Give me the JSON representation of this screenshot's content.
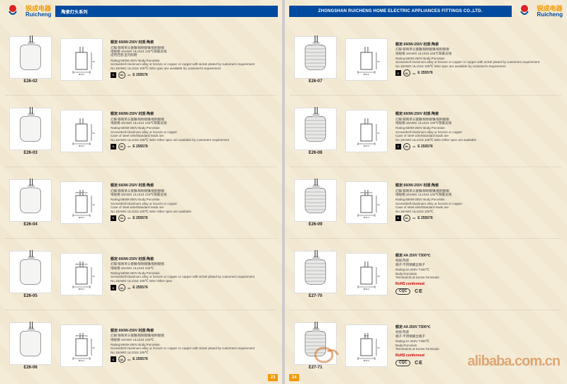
{
  "brand": {
    "cn": "锐成电器",
    "en": "Ruicheng"
  },
  "header_left": "陶瓷灯头系列",
  "header_right": "ZHONGSHAN RUICHENG HOME ELECTRIC APPLIANCES FITTINGS CO.,LTD.",
  "page_left_num": "23",
  "page_right_num": "24",
  "watermark": "alibaba.com.cn",
  "cert_code": "E 255576",
  "cert_letter": "C",
  "cert_ul": "UL",
  "cert_us": "us",
  "rohs_text": "RoHS conformed",
  "cqc_text": "CQC",
  "ce_text": "CE",
  "left_products": [
    {
      "model": "E26-02",
      "spec_cn": "额定:660W-250V  材质:陶瓷",
      "desc_cn": "灯脚:铁制单头镀镍/铜制镀镍/铜制镀锡\n线规格:18AWG UL1015 105℃铁氟龙线\n适用范围:室内照明",
      "desc_en": "Rating:660W-250V  Body:Porcelain\nScrewshell:Aluminum alloy or bronze or copper or copper with nickel plated by customers requirement\nNo.18AWG UL1015 105℃ Wire spec are available by customer's requirement"
    },
    {
      "model": "E26-03",
      "spec_cn": "额定:660W-250V  材质:陶瓷",
      "desc_cn": "灯脚:铁制单头镀镍/铜制镀镍/铜制镀锡\n线规格:18AWG UL1015 105℃铁氟龙线",
      "desc_en": "Rating:660W-250V  Body:Porcelain\nScrewshell:Aluminum alloy or bronze or copper\nCase of steel wire/Standard leads are\nNo.18AWG UL1015 105℃ Wire Other spec are available by customers requirement"
    },
    {
      "model": "E26-04",
      "spec_cn": "额定:660W-250V  材质:陶瓷",
      "desc_cn": "灯脚:铁制单头镀镍/铜制镀镍/铜制镀锡\n线规格:18AWG UL1015 105℃铁氟龙线",
      "desc_en": "Rating:660W-250V  Body:Porcelain\nScrewshell:Aluminum alloy or bronze or copper\nCase of steel wire/Standard leads are\nNo.18AWG UL1015 105℃ Wire Other spec are available",
      "np": "NPS1/8-27(F)"
    },
    {
      "model": "E26-05",
      "spec_cn": "额定:660W-250V  材质:陶瓷",
      "desc_cn": "灯脚:铁制单头镀镍/铜制镀镍/铜制镀锡\n线规格:18AWG UL1015 105℃",
      "desc_en": "Rating:660W-250V  Body:Porcelain\nScrewshell:Aluminum alloy or bronze or copper or copper with nickel plated by customers requirement\nNo.18AWG UL1015 105℃ Wire Other spec",
      "np": "NPS1/8-27(F)"
    },
    {
      "model": "E26-06",
      "spec_cn": "额定:660W-250V  材质:陶瓷",
      "desc_cn": "灯脚:铁制单头镀镍/铜制镀镍/铜制镀锡\n线规格:18AWG UL1015 105℃",
      "desc_en": "Rating:660W-250V  Body:Porcelain\nScrewshell:Aluminum alloy or bronze or copper or copper with nickel plated by customers requirement\nNo.18AWG UL1015 105℃",
      "np": "NPS1/8-27(F)"
    }
  ],
  "right_products": [
    {
      "model": "E26-07",
      "spec_cn": "额定:660W-250V  材质:陶瓷",
      "desc_cn": "灯脚:铁制单头镀镍/铜制镀镍/铜制镀锡\n线规格:18AWG UL1015 105℃铁氟龙线",
      "desc_en": "Rating:660W-250V  Body:Porcelain\nScrewshell:Aluminum alloy or bronze or copper or copper with nickel plated by customers requirement\nNo.18AWG UL1015 105℃ Wire spec are available by customer's requirement",
      "ridged": true
    },
    {
      "model": "E26-08",
      "spec_cn": "额定:660W-250V  材质:陶瓷",
      "desc_cn": "灯脚:铁制单头镀镍/铜制镀镍/铜制镀锡\n线规格:18AWG UL1015 105℃铁氟龙线",
      "desc_en": "Rating:660W-250V  Body:Porcelain\nScrewshell:Aluminum alloy or bronze or copper\nCase of steel wire/Standard leads are\nNo.18AWG UL1015 105℃ Wire Other spec are available",
      "ridged": true
    },
    {
      "model": "E26-09",
      "spec_cn": "额定:660W-250V  材质:陶瓷",
      "desc_cn": "灯脚:铁制单头镀镍/铜制镀镍/铜制镀锡\n线规格:18AWG UL1015 105℃铁氟龙线",
      "desc_en": "Rating:660W-250V  Body:Porcelain\nScrewshell:Aluminum alloy or bronze or copper\nCase of steel wire/Standard leads are\nNo.18AWG UL1015 105℃",
      "np": "NPS1/8-27(F)",
      "ridged": true
    },
    {
      "model": "E27-70",
      "spec_cn": "额定:4A 250V T300℃",
      "desc_cn": "材质:陶瓷\n端子:不锈钢螺丝端子",
      "desc_en": "Rating:4A 250V T300℃\nBody:Porcelain\nTerminal:St.st-Screw Terminals",
      "cqc": true,
      "ridged": true
    },
    {
      "model": "E27-71",
      "spec_cn": "额定:4A 250V T300℃",
      "desc_cn": "材质:陶瓷\n端子:不锈钢螺丝端子",
      "desc_en": "Rating:4A 250V T300℃\nBody:Porcelain\nTerminal:St.st-Screw Terminals",
      "cqc": true,
      "ridged": true,
      "np": "R90°"
    }
  ]
}
